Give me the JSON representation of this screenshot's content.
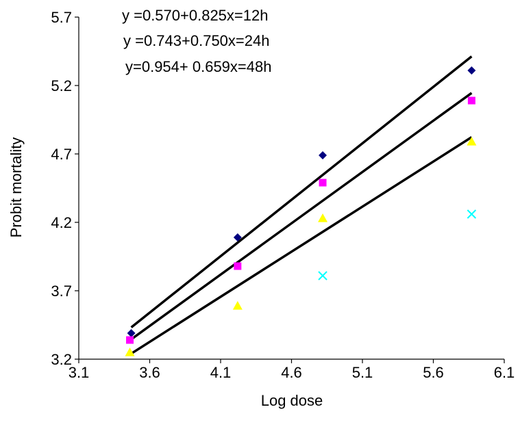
{
  "chart_data": {
    "type": "scatter",
    "title": "",
    "xlabel": "Log dose",
    "ylabel": "Probit mortality",
    "xlim": [
      3.1,
      6.1
    ],
    "ylim": [
      3.2,
      5.7
    ],
    "xticks": [
      "3.1",
      "3.6",
      "4.1",
      "4.6",
      "5.1",
      "5.6",
      "6.1"
    ],
    "yticks": [
      "3.2",
      "3.7",
      "4.2",
      "4.7",
      "5.2",
      "5.7"
    ],
    "grid": false,
    "legend": "none",
    "equations": [
      "y =0.570+0.825x=12h",
      "y =0.743+0.750x=24h",
      "y=0.954+ 0.659x=48h"
    ],
    "series": [
      {
        "marker": "diamond",
        "color": "#000080",
        "points": [
          [
            3.47,
            3.39
          ],
          [
            4.22,
            4.09
          ],
          [
            4.82,
            4.69
          ],
          [
            5.87,
            5.31
          ]
        ],
        "trend": {
          "intercept": 0.57,
          "slope": 0.825
        }
      },
      {
        "marker": "square",
        "color": "#ff00ff",
        "points": [
          [
            3.46,
            3.34
          ],
          [
            4.22,
            3.88
          ],
          [
            4.82,
            4.49
          ],
          [
            5.87,
            5.09
          ]
        ],
        "trend": {
          "intercept": 0.743,
          "slope": 0.75
        }
      },
      {
        "marker": "triangle",
        "color": "#ffff00",
        "points": [
          [
            3.46,
            3.25
          ],
          [
            4.22,
            3.59
          ],
          [
            4.82,
            4.23
          ],
          [
            5.87,
            4.79
          ]
        ],
        "trend": {
          "intercept": 0.954,
          "slope": 0.659
        }
      },
      {
        "marker": "x",
        "color": "#00ffff",
        "points": [
          [
            4.82,
            3.81
          ],
          [
            5.87,
            4.26
          ]
        ]
      }
    ]
  }
}
